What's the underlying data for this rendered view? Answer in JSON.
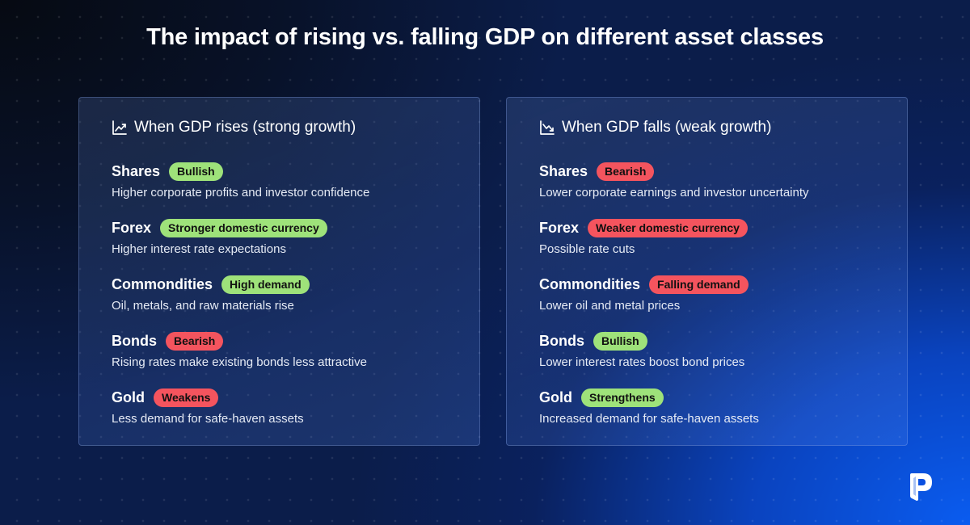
{
  "title": "The impact of rising vs. falling GDP on different asset classes",
  "colors": {
    "positive": "#9ee27a",
    "negative": "#f4545e"
  },
  "left": {
    "header_icon": "chart-up-icon",
    "header": "When GDP rises (strong growth)",
    "items": [
      {
        "name": "Shares",
        "badge": "Bullish",
        "tone": "positive",
        "desc": "Higher corporate profits and investor confidence"
      },
      {
        "name": "Forex",
        "badge": "Stronger domestic currency",
        "tone": "positive",
        "desc": "Higher interest rate expectations"
      },
      {
        "name": "Commondities",
        "badge": "High demand",
        "tone": "positive",
        "desc": "Oil, metals, and raw materials rise"
      },
      {
        "name": "Bonds",
        "badge": "Bearish",
        "tone": "negative",
        "desc": "Rising rates make existing bonds less attractive"
      },
      {
        "name": "Gold",
        "badge": "Weakens",
        "tone": "negative",
        "desc": "Less demand for safe-haven assets"
      }
    ]
  },
  "right": {
    "header_icon": "chart-down-icon",
    "header": "When GDP falls (weak growth)",
    "items": [
      {
        "name": "Shares",
        "badge": "Bearish",
        "tone": "negative",
        "desc": "Lower corporate earnings and investor uncertainty"
      },
      {
        "name": "Forex",
        "badge": "Weaker domestic currency",
        "tone": "negative",
        "desc": "Possible rate cuts"
      },
      {
        "name": "Commondities",
        "badge": "Falling demand",
        "tone": "negative",
        "desc": "Lower oil and metal prices"
      },
      {
        "name": "Bonds",
        "badge": "Bullish",
        "tone": "positive",
        "desc": "Lower interest rates boost bond prices"
      },
      {
        "name": "Gold",
        "badge": "Strengthens",
        "tone": "positive",
        "desc": "Increased demand for safe-haven assets"
      }
    ]
  },
  "logo_icon": "brand-p-logo-icon"
}
